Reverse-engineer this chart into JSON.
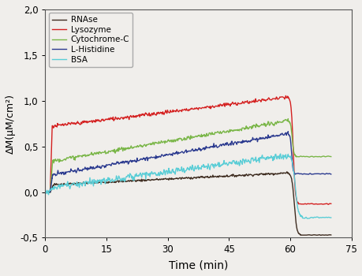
{
  "title": "",
  "xlabel": "Time (min)",
  "ylabel": "ΔM(μM/cm²)",
  "xlim": [
    0,
    75
  ],
  "ylim": [
    -0.5,
    2.0
  ],
  "yticks": [
    -0.5,
    0.0,
    0.5,
    1.0,
    1.5,
    2.0
  ],
  "xticks": [
    0,
    15,
    30,
    45,
    60,
    75
  ],
  "bg_color": "#f0eeeb",
  "series": [
    {
      "name": "RNAse",
      "color": "#3d2b1f",
      "rise_x": 1.2,
      "rise_duration": 0.8,
      "plateau_start": 0.08,
      "plateau_end": 0.21,
      "drop_start_x": 59.5,
      "drop_end_x": 62.5,
      "drop_end_val": -0.47,
      "post_drop_val": -0.47,
      "post_drop_x": 70.0,
      "noise": 0.006
    },
    {
      "name": "Lysozyme",
      "color": "#d42020",
      "rise_x": 1.2,
      "rise_duration": 0.5,
      "plateau_start": 0.72,
      "plateau_end": 1.04,
      "drop_start_x": 59.5,
      "drop_end_x": 62.0,
      "drop_end_val": -0.13,
      "post_drop_val": -0.13,
      "post_drop_x": 70.0,
      "noise": 0.01
    },
    {
      "name": "Cytochrome-C",
      "color": "#7ab648",
      "rise_x": 1.2,
      "rise_duration": 0.6,
      "plateau_start": 0.34,
      "plateau_end": 0.78,
      "drop_start_x": 59.5,
      "drop_end_x": 61.5,
      "drop_end_val": 0.39,
      "post_drop_val": 0.39,
      "post_drop_x": 70.0,
      "noise": 0.01
    },
    {
      "name": "L-Histidine",
      "color": "#2b3a8f",
      "rise_x": 1.2,
      "rise_duration": 0.6,
      "plateau_start": 0.19,
      "plateau_end": 0.64,
      "drop_start_x": 59.5,
      "drop_end_x": 61.2,
      "drop_end_val": 0.2,
      "post_drop_val": 0.2,
      "post_drop_x": 70.0,
      "noise": 0.01
    },
    {
      "name": "BSA",
      "color": "#5acdd6",
      "rise_x": 0.8,
      "rise_duration": 1.2,
      "plateau_start": 0.05,
      "plateau_end": 0.4,
      "drop_start_x": 59.5,
      "drop_end_x": 63.0,
      "drop_end_val": -0.28,
      "post_drop_val": -0.28,
      "post_drop_x": 70.0,
      "noise": 0.018
    }
  ]
}
